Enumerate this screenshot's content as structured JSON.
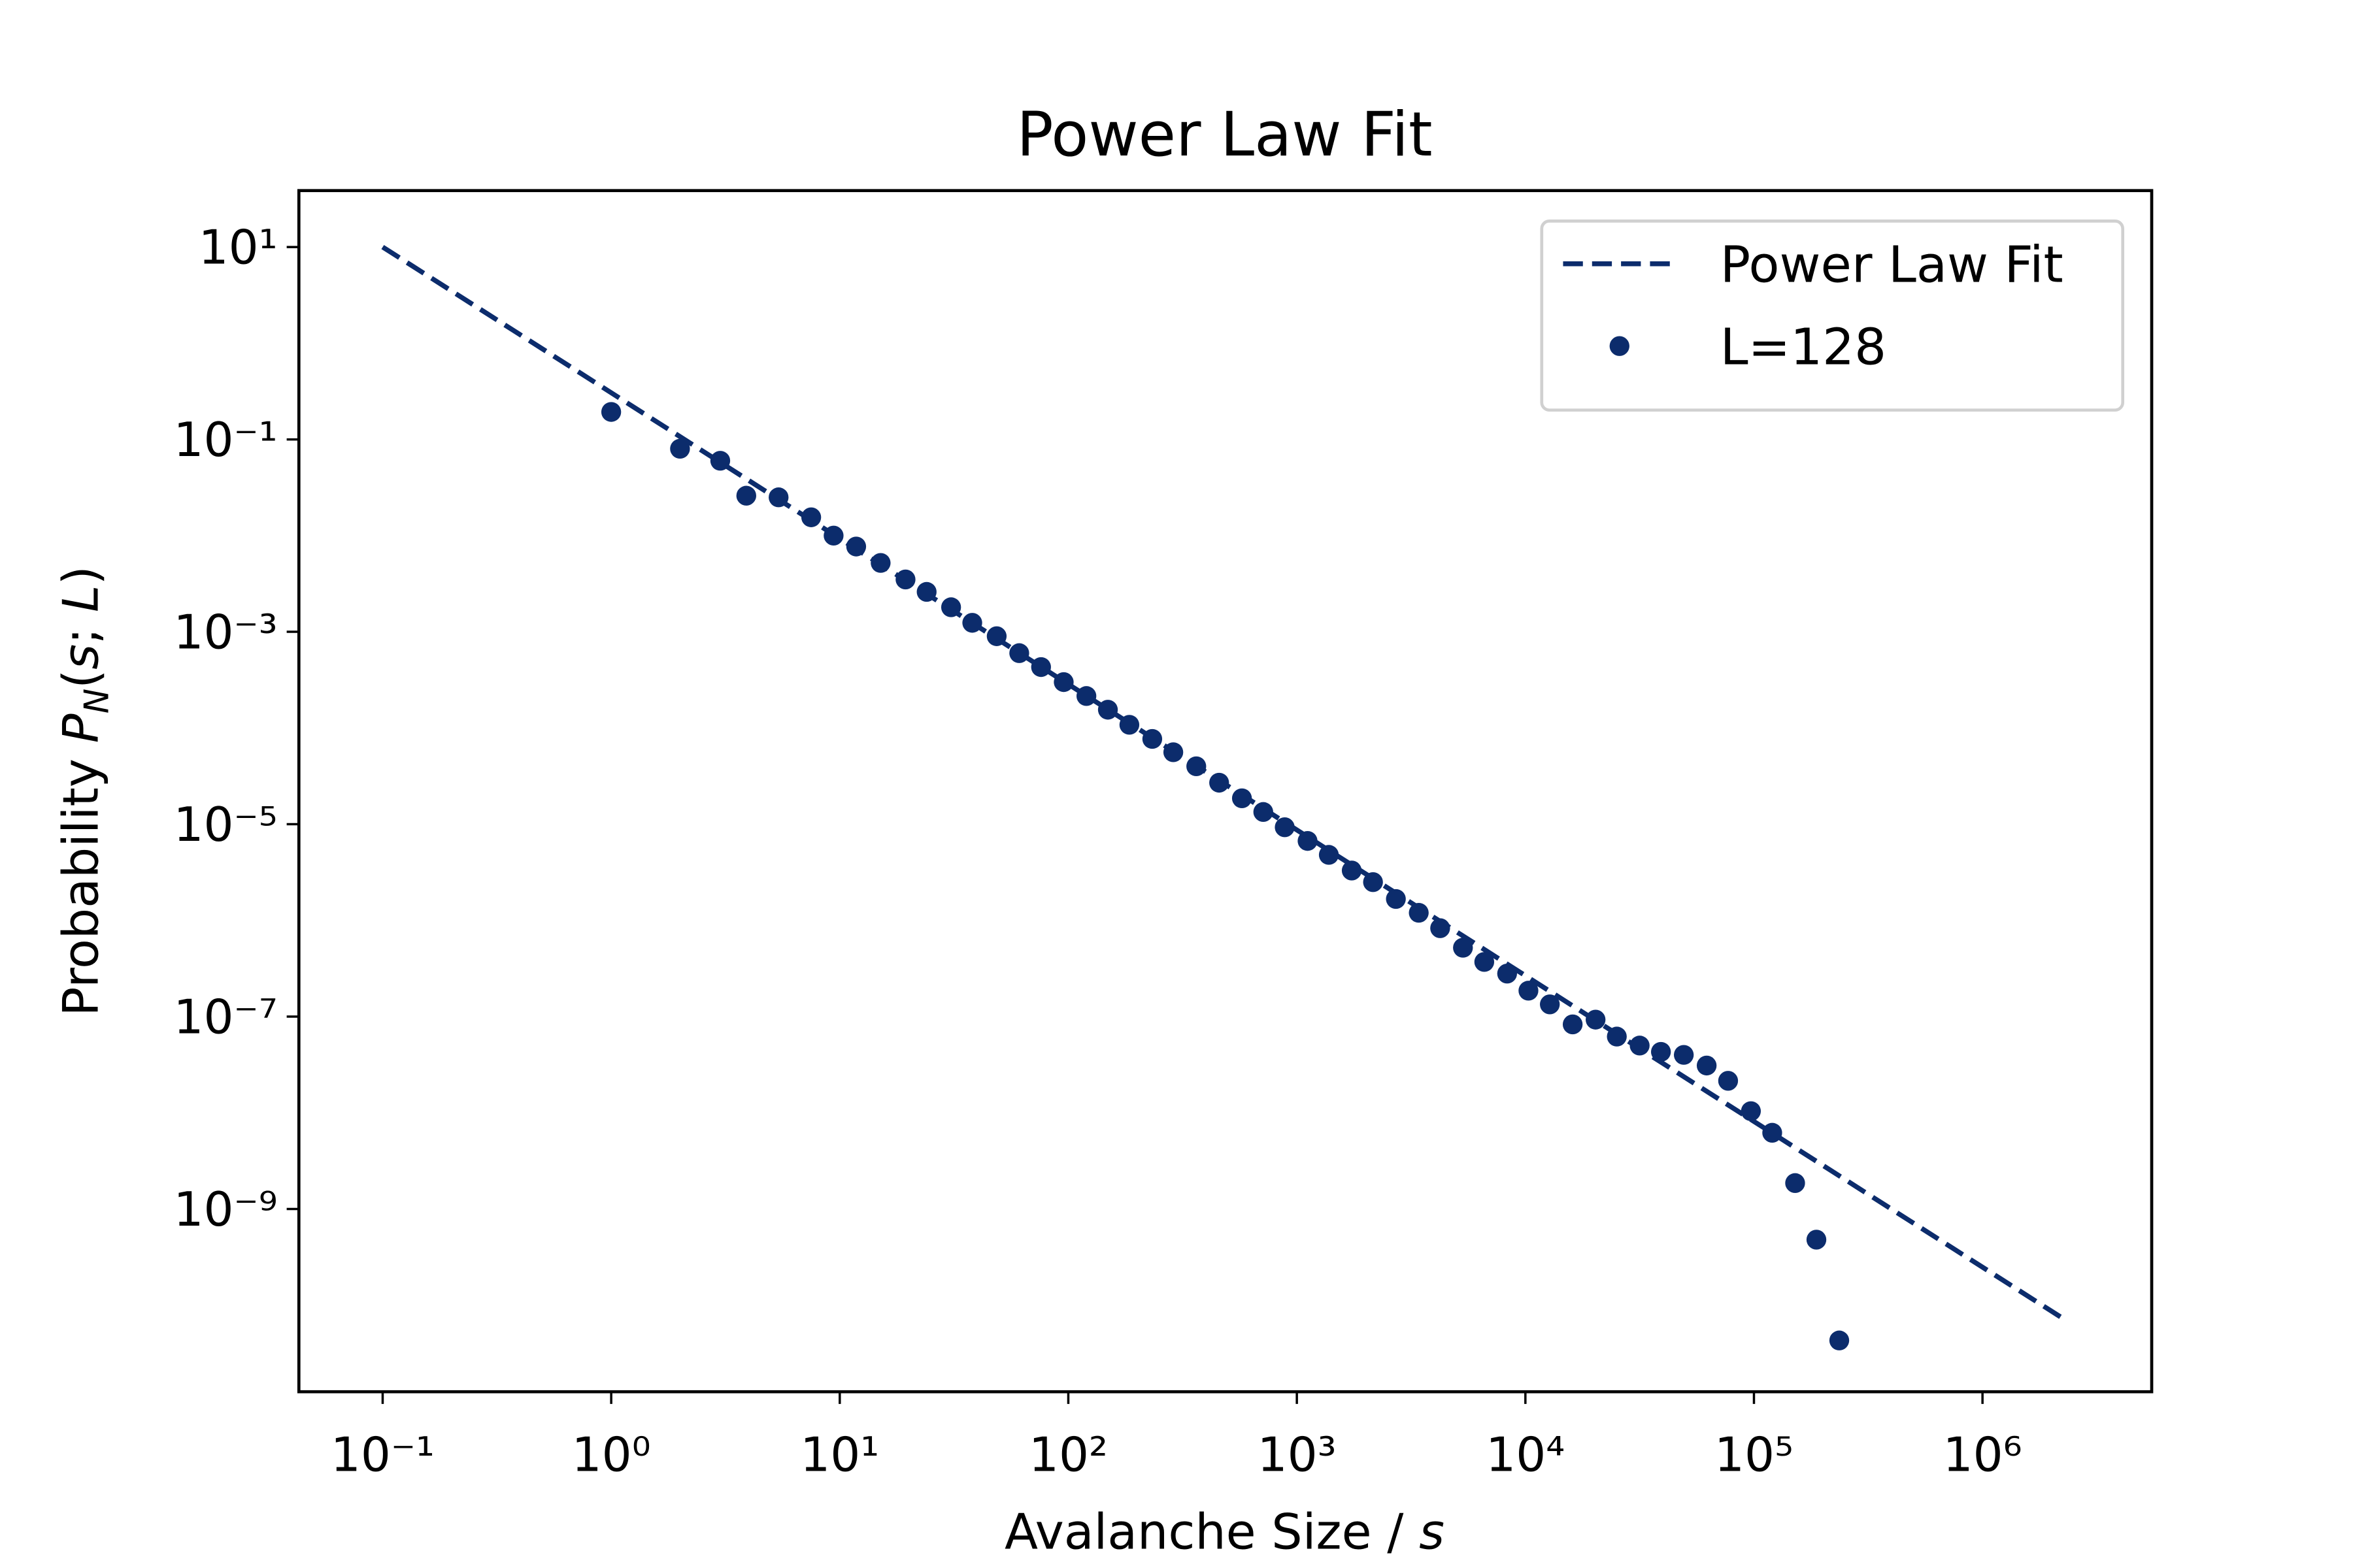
{
  "chart_data": {
    "type": "scatter",
    "title": "Power Law Fit",
    "x_label": [
      "Avalanche Size / ",
      "s"
    ],
    "y_label": [
      "Probability ",
      "P",
      "N",
      "(",
      "s",
      "; ",
      "L",
      ")"
    ],
    "xscale": "log",
    "yscale": "log",
    "xlim": [
      0.043,
      5500000
    ],
    "ylim": [
      1.26e-11,
      38.6
    ],
    "xticks": [
      {
        "value": 0.1,
        "label": "10⁻¹"
      },
      {
        "value": 1,
        "label": "10⁰"
      },
      {
        "value": 10,
        "label": "10¹"
      },
      {
        "value": 100,
        "label": "10²"
      },
      {
        "value": 1000,
        "label": "10³"
      },
      {
        "value": 10000,
        "label": "10⁴"
      },
      {
        "value": 100000,
        "label": "10⁵"
      },
      {
        "value": 1000000,
        "label": "10⁶"
      }
    ],
    "yticks": [
      {
        "value": 10,
        "label": "10¹"
      },
      {
        "value": 0.1,
        "label": "10⁻¹"
      },
      {
        "value": 0.001,
        "label": "10⁻³"
      },
      {
        "value": 1e-05,
        "label": "10⁻⁵"
      },
      {
        "value": 1e-07,
        "label": "10⁻⁷"
      },
      {
        "value": 1e-09,
        "label": "10⁻⁹"
      }
    ],
    "legend": "upper right",
    "series": [
      {
        "name": "Power Law Fit",
        "type": "line",
        "style": "dashed",
        "color": "#0c2c6c",
        "x": [
          0.1,
          2330000
        ],
        "values": [
          10,
          6.9e-11
        ]
      },
      {
        "name": "L=128",
        "type": "scatter",
        "color": "#0c2c6c",
        "x": [
          1,
          2,
          3,
          3.9,
          5.4,
          7.5,
          9.4,
          11.8,
          15.1,
          19.4,
          24,
          30.7,
          38,
          48.6,
          61,
          76,
          95.5,
          120,
          149,
          185,
          233,
          288,
          363,
          457,
          575,
          713,
          885,
          1114,
          1380,
          1738,
          2154,
          2712,
          3415,
          4236,
          5330,
          6607,
          8318,
          10310,
          12790,
          16100,
          20280,
          25120,
          31620,
          39170,
          49320,
          62100,
          77080,
          97000,
          120200,
          151400,
          187600,
          236200
        ],
        "values": [
          0.193,
          0.08,
          0.06,
          0.026,
          0.025,
          0.0155,
          0.01,
          0.0077,
          0.0052,
          0.0035,
          0.0026,
          0.0018,
          0.00124,
          0.0009,
          0.0006,
          0.00043,
          0.0003,
          0.000215,
          0.000155,
          0.000108,
          7.7e-05,
          5.6e-05,
          4e-05,
          2.7e-05,
          1.86e-05,
          1.34e-05,
          9.3e-06,
          6.7e-06,
          4.8e-06,
          3.3e-06,
          2.5e-06,
          1.67e-06,
          1.2e-06,
          8.3e-07,
          5.2e-07,
          3.7e-07,
          2.8e-07,
          1.86e-07,
          1.34e-07,
          8.3e-08,
          9.3e-08,
          6.2e-08,
          5e-08,
          4.3e-08,
          4e-08,
          3.1e-08,
          2.15e-08,
          1.04e-08,
          6.2e-09,
          1.86e-09,
          4.8e-10,
          4.3e-11
        ]
      }
    ]
  }
}
